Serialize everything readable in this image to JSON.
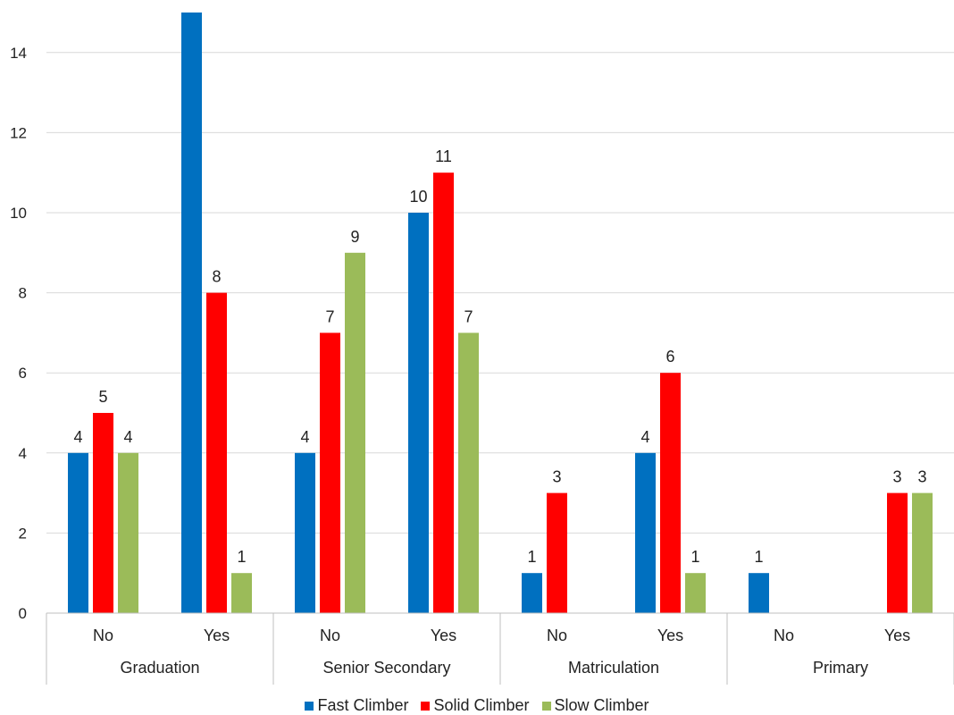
{
  "chart_data": {
    "type": "bar",
    "groups": [
      "Graduation",
      "Senior Secondary",
      "Matriculation",
      "Primary"
    ],
    "subcategories": [
      "No",
      "Yes"
    ],
    "series": [
      {
        "name": "Fast Climber",
        "color": "#0070C0",
        "values": [
          4,
          15,
          4,
          10,
          1,
          4,
          1,
          null
        ]
      },
      {
        "name": "Solid Climber",
        "color": "#FF0000",
        "values": [
          5,
          8,
          7,
          11,
          3,
          6,
          null,
          3
        ]
      },
      {
        "name": "Slow Climber",
        "color": "#9BBB59",
        "values": [
          4,
          1,
          9,
          7,
          null,
          1,
          null,
          3
        ]
      }
    ],
    "data_labels": [
      [
        "4",
        "",
        "4",
        "10",
        "1",
        "4",
        "1",
        ""
      ],
      [
        "5",
        "8",
        "7",
        "11",
        "3",
        "6",
        "",
        "3"
      ],
      [
        "4",
        "1",
        "9",
        "7",
        "",
        "1",
        "",
        "3"
      ]
    ],
    "ylim": [
      0,
      15
    ],
    "yticks": [
      0,
      2,
      4,
      6,
      8,
      10,
      12,
      14
    ],
    "grid": true,
    "legend_position": "bottom"
  }
}
